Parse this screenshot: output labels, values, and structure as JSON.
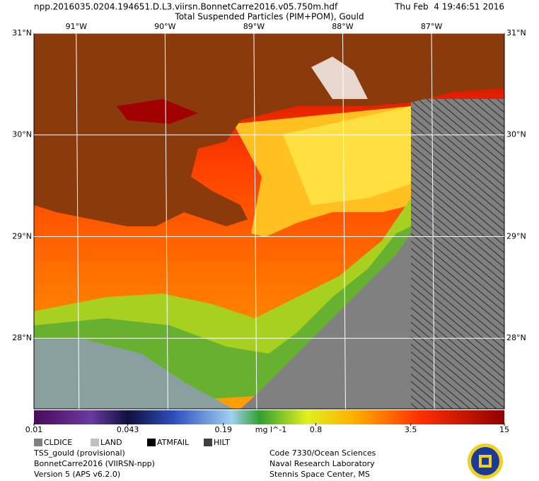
{
  "header": {
    "filename": "npp.2016035.0204.194651.D.L3.viirsn.BonnetCarre2016.v05.750m.hdf",
    "timestamp": "Thu Feb  4 19:46:51 2016",
    "product": "Total Suspended Particles (PIM+POM), Gould"
  },
  "map": {
    "xlim": [
      -91.476,
      -86.18
    ],
    "ylim": [
      27.306,
      31
    ],
    "xticks": [
      {
        "value": -91,
        "label": "91°W"
      },
      {
        "value": -90,
        "label": "90°W"
      },
      {
        "value": -89,
        "label": "89°W"
      },
      {
        "value": -88,
        "label": "88°W"
      },
      {
        "value": -87,
        "label": "87°W"
      }
    ],
    "yticks": [
      {
        "value": 31,
        "label": "31°N"
      },
      {
        "value": 30,
        "label": "30°N"
      },
      {
        "value": 29,
        "label": "29°N"
      },
      {
        "value": 28,
        "label": "28°N"
      }
    ]
  },
  "colorbar": {
    "scale": "log",
    "range": [
      0.01,
      15
    ],
    "ticks": [
      0.01,
      0.043,
      0.19,
      0.8,
      3.5,
      15
    ],
    "unit": "mg l^-1"
  },
  "legend": [
    "CLDICE",
    "LAND",
    "ATMFAIL",
    "HILT"
  ],
  "footer": {
    "left": [
      "TSS_gould (provisional)",
      "BonnetCarre2016 (VIIRSN-npp)",
      "Version 5 (APS v6.2.0)"
    ],
    "right": [
      "Code 7330/Ocean Sciences",
      "Naval Research Laboratory",
      "Stennis Space Center, MS"
    ]
  }
}
